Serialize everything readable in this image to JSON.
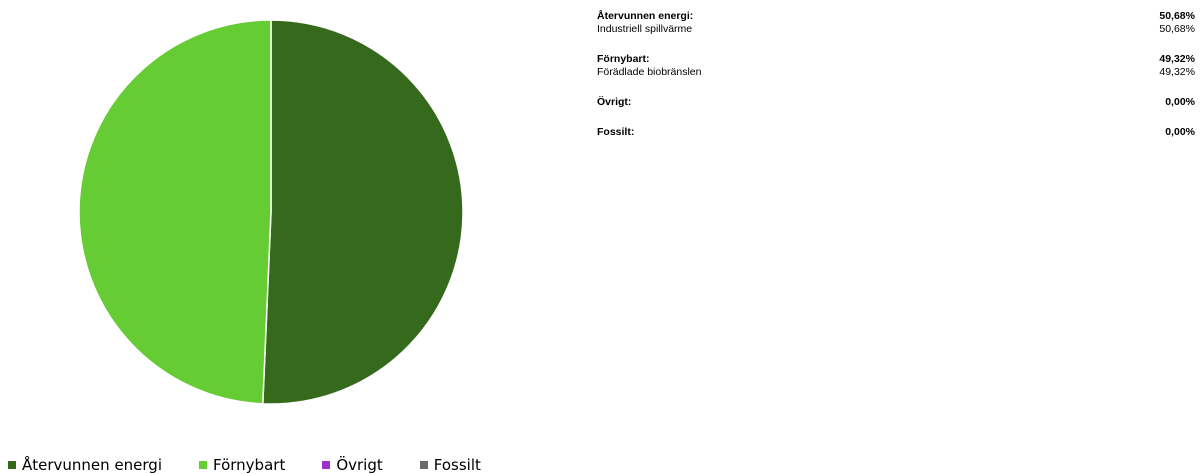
{
  "chart_data": {
    "type": "pie",
    "slices": [
      {
        "name": "Återvunnen energi",
        "value": 50.68,
        "color": "#35691b"
      },
      {
        "name": "Förnybart",
        "value": 49.32,
        "color": "#66cc33"
      },
      {
        "name": "Övrigt",
        "value": 0.0,
        "color": "#9933cc"
      },
      {
        "name": "Fossilt",
        "value": 0.0,
        "color": "#6b6b6b"
      }
    ],
    "legend_position": "bottom-left"
  },
  "legend": [
    {
      "label": "Återvunnen energi",
      "color": "#35691b"
    },
    {
      "label": "Förnybart",
      "color": "#66cc33"
    },
    {
      "label": "Övrigt",
      "color": "#9933cc"
    },
    {
      "label": "Fossilt",
      "color": "#6b6b6b"
    }
  ],
  "table": {
    "groups": [
      {
        "label": "Återvunnen energi:",
        "value": "50,68%",
        "subs": [
          {
            "label": "Industriell spillvärme",
            "value": "50,68%"
          }
        ]
      },
      {
        "label": "Förnybart:",
        "value": "49,32%",
        "subs": [
          {
            "label": "Förädlade biobränslen",
            "value": "49,32%"
          }
        ]
      },
      {
        "label": "Övrigt:",
        "value": "0,00%",
        "subs": []
      },
      {
        "label": "Fossilt:",
        "value": "0,00%",
        "subs": []
      }
    ]
  }
}
